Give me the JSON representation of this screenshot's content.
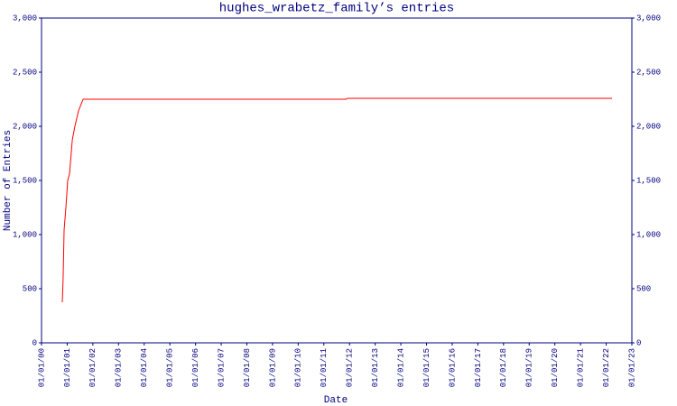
{
  "chart_data": {
    "type": "line",
    "title": "hughes_wrabetz_family’s entries",
    "x_label": "Date",
    "y_label": "Number of Entries",
    "x": [
      2000.81,
      2000.84,
      2000.88,
      2000.95,
      2001.02,
      2001.09,
      2001.2,
      2001.3,
      2001.44,
      2001.62,
      2011.85,
      2011.92,
      2022.23
    ],
    "values": [
      375,
      583,
      1042,
      1250,
      1500,
      1558,
      1875,
      2000,
      2142,
      2250,
      2250,
      2258,
      2258
    ],
    "color": "#ff0000",
    "axis_color": "#000080",
    "xlim": [
      2000,
      2023
    ],
    "xticks": [
      {
        "value": 2000,
        "label": "01/01/00"
      },
      {
        "value": 2001,
        "label": "01/01/01"
      },
      {
        "value": 2002,
        "label": "01/01/02"
      },
      {
        "value": 2003,
        "label": "01/01/03"
      },
      {
        "value": 2004,
        "label": "01/01/04"
      },
      {
        "value": 2005,
        "label": "01/01/05"
      },
      {
        "value": 2006,
        "label": "01/01/06"
      },
      {
        "value": 2007,
        "label": "01/01/07"
      },
      {
        "value": 2008,
        "label": "01/01/08"
      },
      {
        "value": 2009,
        "label": "01/01/09"
      },
      {
        "value": 2010,
        "label": "01/01/10"
      },
      {
        "value": 2011,
        "label": "01/01/11"
      },
      {
        "value": 2012,
        "label": "01/01/12"
      },
      {
        "value": 2013,
        "label": "01/01/13"
      },
      {
        "value": 2014,
        "label": "01/01/14"
      },
      {
        "value": 2015,
        "label": "01/01/15"
      },
      {
        "value": 2016,
        "label": "01/01/16"
      },
      {
        "value": 2017,
        "label": "01/01/17"
      },
      {
        "value": 2018,
        "label": "01/01/18"
      },
      {
        "value": 2019,
        "label": "01/01/19"
      },
      {
        "value": 2020,
        "label": "01/01/20"
      },
      {
        "value": 2021,
        "label": "01/01/21"
      },
      {
        "value": 2022,
        "label": "01/01/22"
      },
      {
        "value": 2023,
        "label": "01/01/23"
      }
    ],
    "ylim": [
      0,
      3000
    ],
    "yticks": [
      0,
      500,
      {
        "value": 1000,
        "label": "1,000"
      },
      {
        "value": 1500,
        "label": "1,500"
      },
      {
        "value": 2000,
        "label": "2,000"
      },
      {
        "value": 2500,
        "label": "2,500"
      },
      {
        "value": 3000,
        "label": "3,000"
      }
    ],
    "y2lim": [
      0,
      3000
    ],
    "y2ticks": [
      0,
      500,
      {
        "value": 1000,
        "label": "1,000"
      },
      {
        "value": 1500,
        "label": "1,500"
      },
      {
        "value": 2000,
        "label": "2,000"
      },
      {
        "value": 2500,
        "label": "2,500"
      },
      {
        "value": 3000,
        "label": "3,000"
      }
    ],
    "grid": false
  }
}
